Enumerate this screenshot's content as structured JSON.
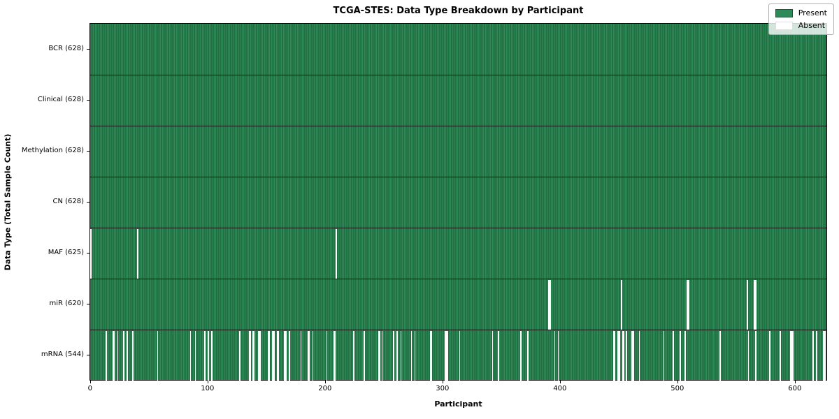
{
  "title": "TCGA-STES: Data Type Breakdown by Participant",
  "xlabel": "Participant",
  "ylabel": "Data Type (Total Sample Count)",
  "legend": {
    "present_label": "Present",
    "absent_label": "Absent"
  },
  "colors": {
    "present": "#2e8b57",
    "present_edge": "#1a5633",
    "absent": "#ffffff",
    "row_divider": "#000000",
    "legend_background": "rgba(255,255,255,0.8)"
  },
  "chart_data": {
    "type": "heatmap",
    "title": "TCGA-STES: Data Type Breakdown by Participant",
    "xlabel": "Participant",
    "ylabel": "Data Type (Total Sample Count)",
    "legend_entries": [
      "Present",
      "Absent"
    ],
    "legend_position": "upper right",
    "n_participants": 628,
    "x_ticks": [
      0,
      100,
      200,
      300,
      400,
      500,
      600
    ],
    "x_range": [
      0,
      628
    ],
    "rows": [
      {
        "label": "BCR (628)",
        "data_type": "BCR",
        "present_count": 628,
        "absent_count": 0,
        "absent_participants": []
      },
      {
        "label": "Clinical (628)",
        "data_type": "Clinical",
        "present_count": 628,
        "absent_count": 0,
        "absent_participants": []
      },
      {
        "label": "Methylation (628)",
        "data_type": "Methylation",
        "present_count": 628,
        "absent_count": 0,
        "absent_participants": []
      },
      {
        "label": "CN (628)",
        "data_type": "CN",
        "present_count": 628,
        "absent_count": 0,
        "absent_participants": []
      },
      {
        "label": "MAF (625)",
        "data_type": "MAF",
        "present_count": 625,
        "absent_count": 3,
        "absent_participants": [
          0,
          40,
          209
        ]
      },
      {
        "label": "miR (620)",
        "data_type": "miR",
        "present_count": 620,
        "absent_count": 8,
        "absent_participants": [
          390,
          391,
          452,
          508,
          509,
          559,
          565,
          566
        ]
      },
      {
        "label": "mRNA (544)",
        "data_type": "mRNA",
        "present_count": 544,
        "absent_count": 84,
        "absent_participants": [
          13,
          19,
          20,
          23,
          28,
          31,
          36,
          57,
          85,
          89,
          97,
          100,
          103,
          127,
          135,
          136,
          138,
          139,
          143,
          144,
          151,
          152,
          155,
          156,
          159,
          160,
          165,
          166,
          169,
          179,
          185,
          186,
          189,
          201,
          207,
          208,
          224,
          233,
          245,
          246,
          248,
          258,
          261,
          264,
          273,
          276,
          289,
          290,
          302,
          303,
          304,
          314,
          342,
          347,
          366,
          372,
          395,
          398,
          445,
          446,
          449,
          450,
          453,
          454,
          456,
          461,
          462,
          467,
          488,
          496,
          502,
          506,
          536,
          560,
          566,
          578,
          587,
          596,
          597,
          598,
          615,
          618,
          624,
          625
        ]
      }
    ]
  }
}
